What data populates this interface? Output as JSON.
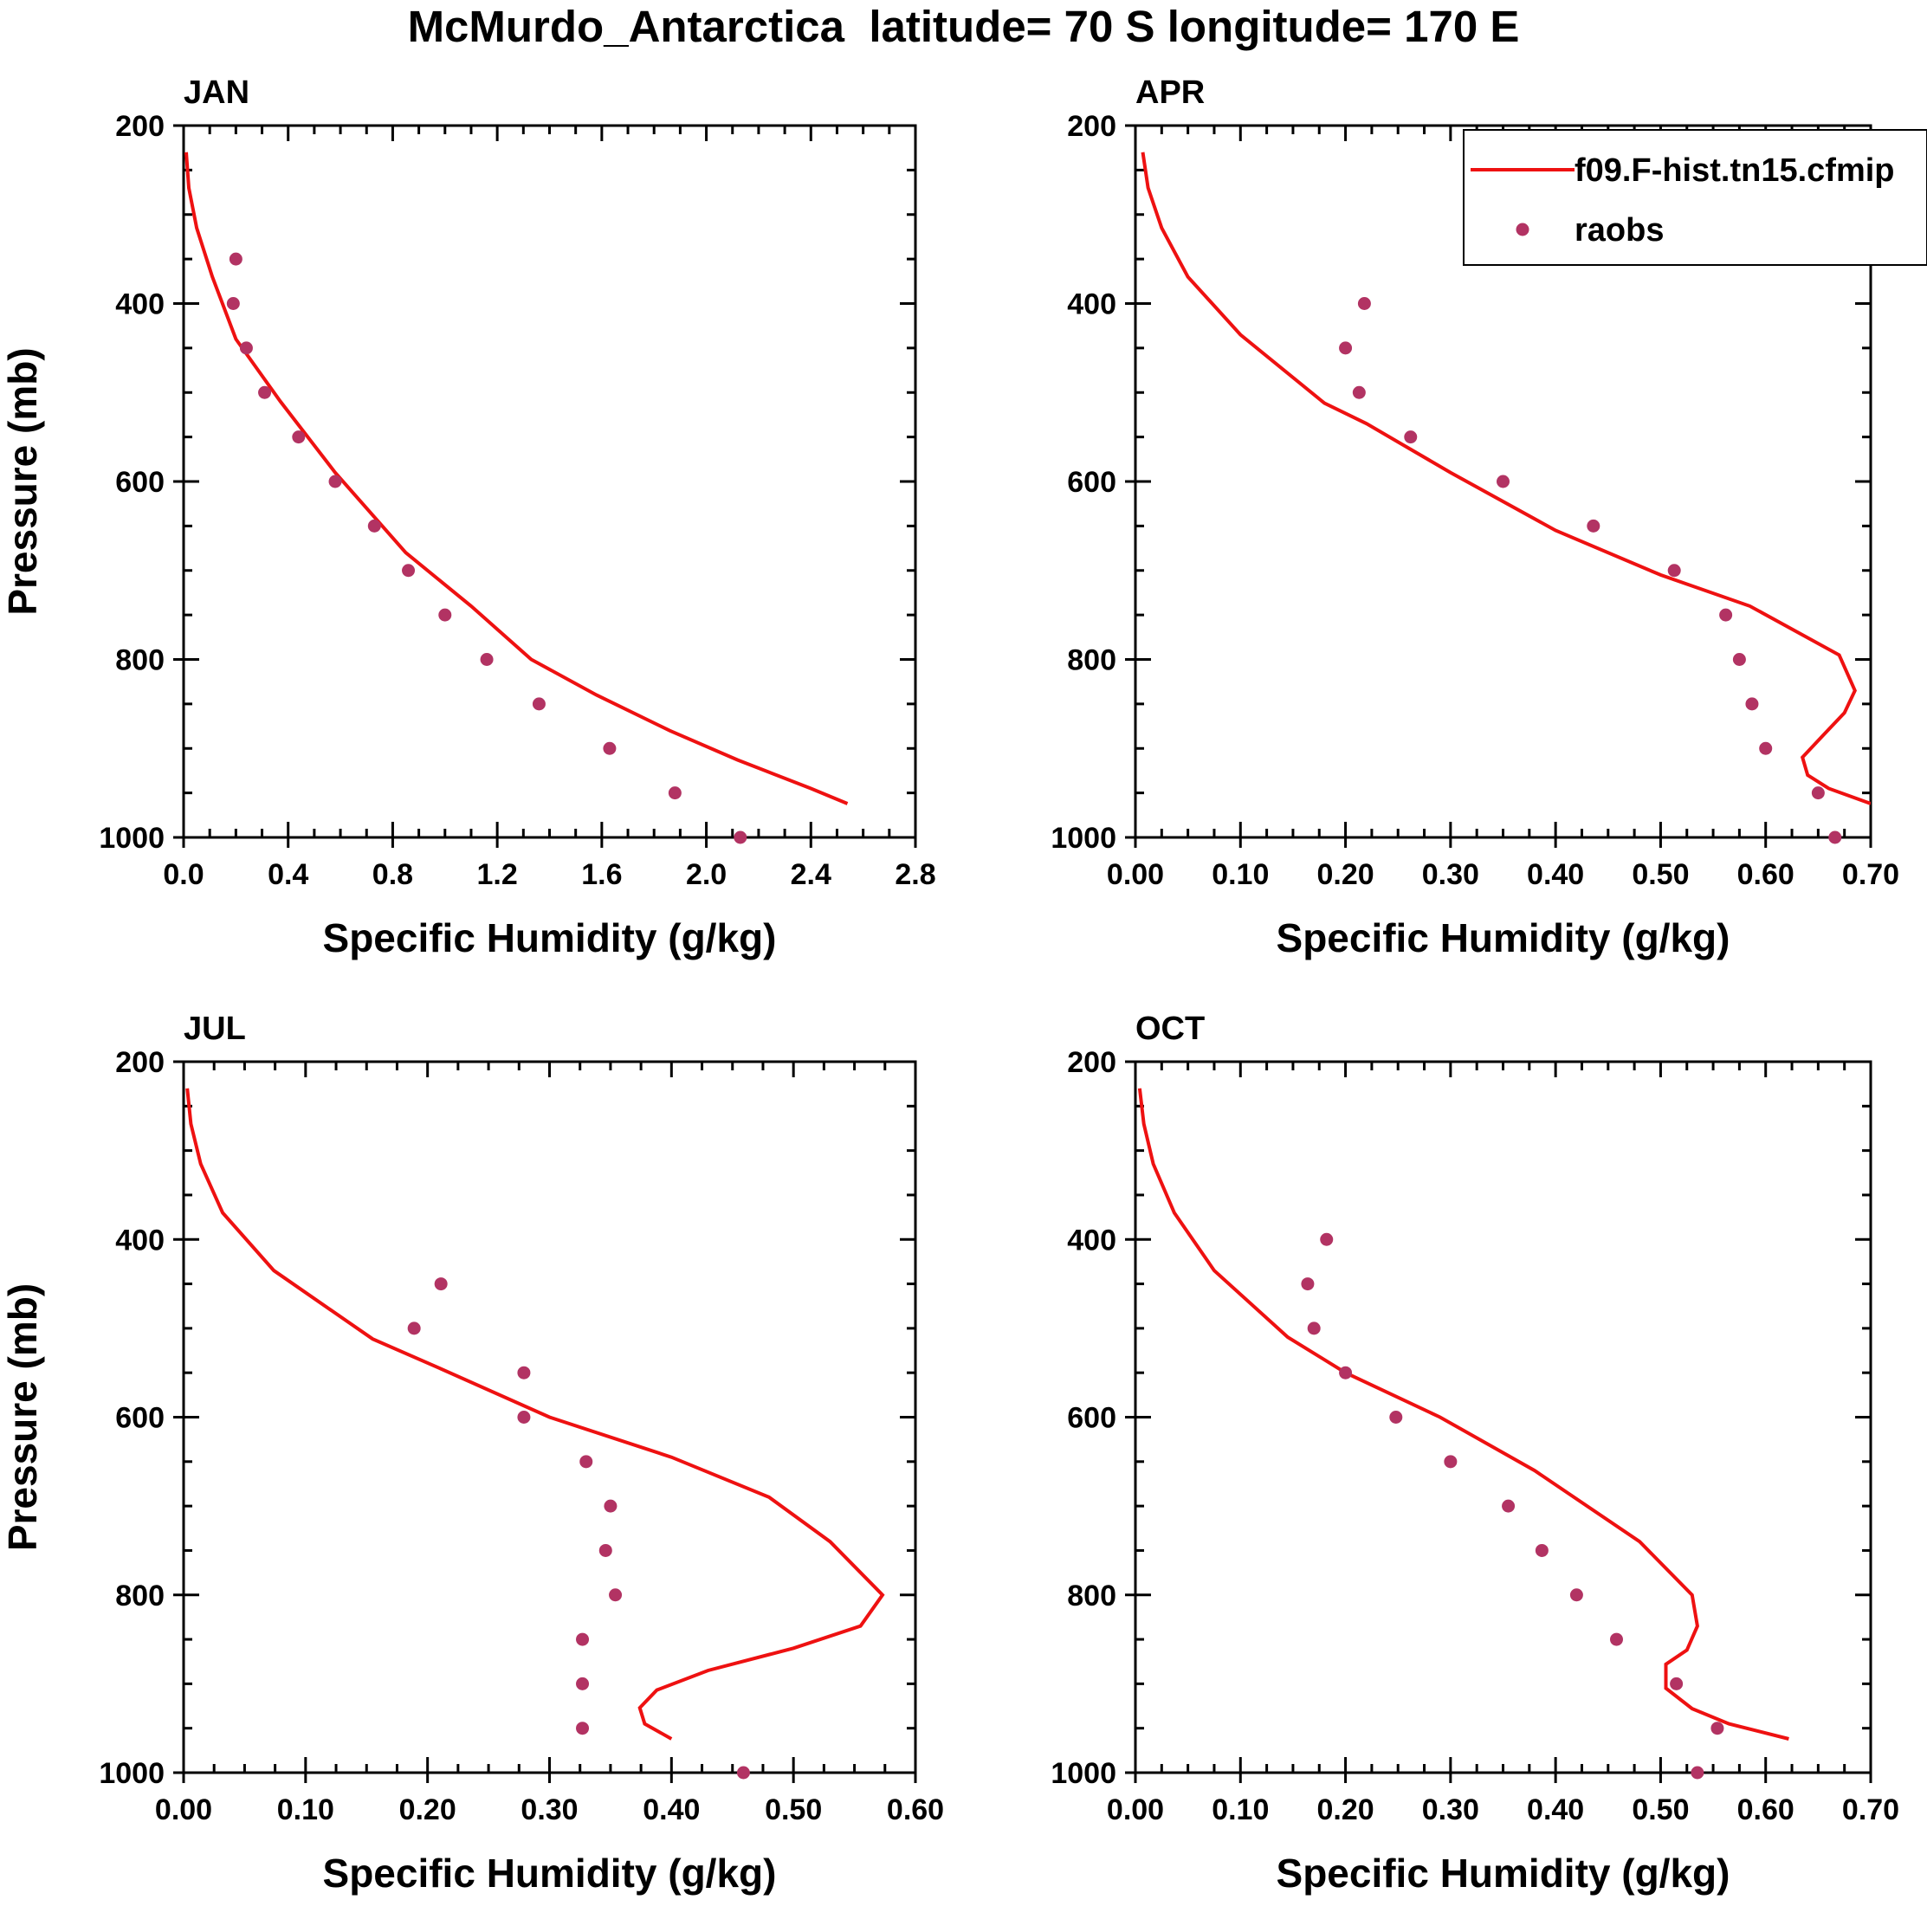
{
  "title": "McMurdo_Antarctica  latitude= 70 S longitude= 170 E",
  "colors": {
    "model": "#ee1111",
    "obs": "#b23363",
    "axis": "#000000"
  },
  "legend": {
    "model_label": "f09.F-hist.tn15.cfmip",
    "obs_label": "raobs"
  },
  "chart_data": [
    {
      "type": "line",
      "panel": "JAN",
      "title": "JAN",
      "xlabel": "Specific Humidity (g/kg)",
      "ylabel": "Pressure (mb)",
      "xlim": [
        0,
        2.8
      ],
      "ylim": [
        200,
        1000
      ],
      "xticks": [
        "0.0",
        "0.4",
        "0.8",
        "1.2",
        "1.6",
        "2.0",
        "2.4",
        "2.8"
      ],
      "xtick_values": [
        0,
        0.4,
        0.8,
        1.2,
        1.6,
        2.0,
        2.4,
        2.8
      ],
      "yticks": [
        "200",
        "400",
        "600",
        "800",
        "1000"
      ],
      "ytick_values": [
        200,
        400,
        600,
        800,
        1000
      ],
      "series": [
        {
          "name": "f09.F-hist.tn15.cfmip",
          "kind": "line",
          "x": [
            0.01,
            0.02,
            0.05,
            0.11,
            0.2,
            0.37,
            0.58,
            0.85,
            1.1,
            1.33,
            1.58,
            1.86,
            2.12,
            2.4,
            2.54
          ],
          "y": [
            230,
            270,
            315,
            370,
            440,
            510,
            590,
            680,
            740,
            800,
            840,
            880,
            913,
            945,
            962
          ]
        },
        {
          "name": "raobs",
          "kind": "scatter",
          "x": [
            0.2,
            0.19,
            0.24,
            0.31,
            0.44,
            0.58,
            0.73,
            0.86,
            1.0,
            1.16,
            1.36,
            1.63,
            1.88,
            2.13
          ],
          "y": [
            350,
            400,
            450,
            500,
            550,
            600,
            650,
            700,
            750,
            800,
            850,
            900,
            950,
            1000
          ]
        }
      ]
    },
    {
      "type": "line",
      "panel": "APR",
      "title": "APR",
      "xlabel": "Specific Humidity (g/kg)",
      "ylabel": "",
      "xlim": [
        0,
        0.7
      ],
      "ylim": [
        200,
        1000
      ],
      "xticks": [
        "0.00",
        "0.10",
        "0.20",
        "0.30",
        "0.40",
        "0.50",
        "0.60",
        "0.70"
      ],
      "xtick_values": [
        0,
        0.1,
        0.2,
        0.3,
        0.4,
        0.5,
        0.6,
        0.7
      ],
      "yticks": [
        "200",
        "400",
        "600",
        "800",
        "1000"
      ],
      "ytick_values": [
        200,
        400,
        600,
        800,
        1000
      ],
      "legend": "top-right",
      "series": [
        {
          "name": "f09.F-hist.tn15.cfmip",
          "kind": "line",
          "x": [
            0.007,
            0.012,
            0.025,
            0.05,
            0.1,
            0.18,
            0.22,
            0.3,
            0.4,
            0.5,
            0.585,
            0.67,
            0.685,
            0.675,
            0.655,
            0.635,
            0.64,
            0.66,
            0.7
          ],
          "y": [
            230,
            270,
            315,
            370,
            435,
            512,
            535,
            590,
            655,
            705,
            740,
            795,
            835,
            860,
            885,
            910,
            930,
            945,
            962
          ]
        },
        {
          "name": "raobs",
          "kind": "scatter",
          "x": [
            0.218,
            0.2,
            0.213,
            0.262,
            0.35,
            0.436,
            0.513,
            0.562,
            0.575,
            0.587,
            0.6,
            0.65,
            0.666
          ],
          "y": [
            400,
            450,
            500,
            550,
            600,
            650,
            700,
            750,
            800,
            850,
            900,
            950,
            1000
          ]
        }
      ]
    },
    {
      "type": "line",
      "panel": "JUL",
      "title": "JUL",
      "xlabel": "Specific Humidity (g/kg)",
      "ylabel": "Pressure (mb)",
      "xlim": [
        0,
        0.6
      ],
      "ylim": [
        200,
        1000
      ],
      "xticks": [
        "0.00",
        "0.10",
        "0.20",
        "0.30",
        "0.40",
        "0.50",
        "0.60"
      ],
      "xtick_values": [
        0,
        0.1,
        0.2,
        0.3,
        0.4,
        0.5,
        0.6
      ],
      "yticks": [
        "200",
        "400",
        "600",
        "800",
        "1000"
      ],
      "ytick_values": [
        200,
        400,
        600,
        800,
        1000
      ],
      "series": [
        {
          "name": "f09.F-hist.tn15.cfmip",
          "kind": "line",
          "x": [
            0.003,
            0.006,
            0.014,
            0.032,
            0.074,
            0.155,
            0.21,
            0.3,
            0.4,
            0.48,
            0.53,
            0.573,
            0.555,
            0.5,
            0.43,
            0.388,
            0.374,
            0.378,
            0.4
          ],
          "y": [
            230,
            270,
            315,
            370,
            435,
            512,
            545,
            600,
            645,
            690,
            740,
            800,
            835,
            860,
            885,
            907,
            927,
            945,
            962
          ]
        },
        {
          "name": "raobs",
          "kind": "scatter",
          "x": [
            0.211,
            0.189,
            0.279,
            0.279,
            0.33,
            0.35,
            0.346,
            0.354,
            0.327,
            0.327,
            0.327,
            0.459
          ],
          "y": [
            450,
            500,
            550,
            600,
            650,
            700,
            750,
            800,
            850,
            900,
            950,
            1000
          ]
        }
      ]
    },
    {
      "type": "line",
      "panel": "OCT",
      "title": "OCT",
      "xlabel": "Specific Humidity (g/kg)",
      "ylabel": "",
      "xlim": [
        0,
        0.7
      ],
      "ylim": [
        200,
        1000
      ],
      "xticks": [
        "0.00",
        "0.10",
        "0.20",
        "0.30",
        "0.40",
        "0.50",
        "0.60",
        "0.70"
      ],
      "xtick_values": [
        0,
        0.1,
        0.2,
        0.3,
        0.4,
        0.5,
        0.6,
        0.7
      ],
      "yticks": [
        "200",
        "400",
        "600",
        "800",
        "1000"
      ],
      "ytick_values": [
        200,
        400,
        600,
        800,
        1000
      ],
      "series": [
        {
          "name": "f09.F-hist.tn15.cfmip",
          "kind": "line",
          "x": [
            0.004,
            0.008,
            0.017,
            0.037,
            0.075,
            0.145,
            0.2,
            0.29,
            0.38,
            0.48,
            0.53,
            0.535,
            0.525,
            0.505,
            0.505,
            0.53,
            0.565,
            0.622
          ],
          "y": [
            230,
            270,
            315,
            370,
            435,
            510,
            550,
            600,
            660,
            740,
            800,
            835,
            862,
            878,
            905,
            928,
            945,
            962
          ]
        },
        {
          "name": "raobs",
          "kind": "scatter",
          "x": [
            0.182,
            0.164,
            0.17,
            0.2,
            0.248,
            0.3,
            0.355,
            0.387,
            0.42,
            0.458,
            0.515,
            0.554,
            0.535
          ],
          "y": [
            400,
            450,
            500,
            550,
            600,
            650,
            700,
            750,
            800,
            850,
            900,
            950,
            1000
          ]
        }
      ]
    }
  ]
}
